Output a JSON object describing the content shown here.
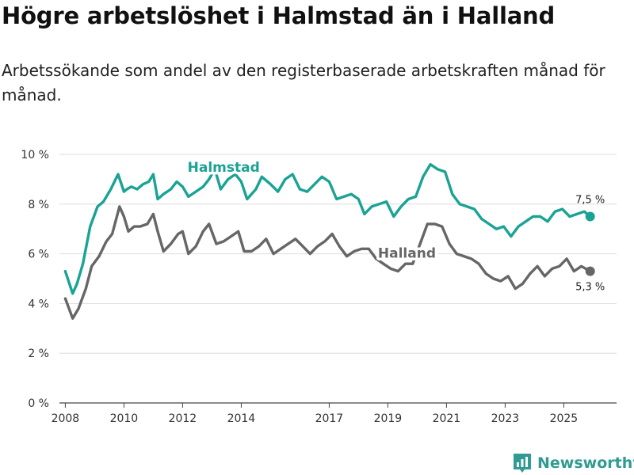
{
  "title": "Högre arbetslöshet i Halmstad än i Halland",
  "subtitle": "Arbetssökande som andel av den registerbaserade arbetskraften månad för månad.",
  "brand": {
    "name": "Newsworthy",
    "icon": "newsworthy-logo-icon"
  },
  "colors": {
    "halmstad": "#1aa394",
    "halland": "#666666",
    "grid": "#dddddd",
    "brand": "#2f9b92"
  },
  "chart_data": {
    "type": "line",
    "title": "Högre arbetslöshet i Halmstad än i Halland",
    "xlabel": "",
    "ylabel": "",
    "xlim": [
      2007.8,
      2026.8
    ],
    "ylim": [
      0,
      10
    ],
    "y_ticks": [
      0,
      2,
      4,
      6,
      8,
      10
    ],
    "y_tick_labels": [
      "0 %",
      "2 %",
      "4 %",
      "6 %",
      "8 %",
      "10 %"
    ],
    "x_ticks": [
      2008,
      2010,
      2012,
      2014,
      2017,
      2019,
      2021,
      2023,
      2025
    ],
    "x_tick_labels": [
      "2008",
      "2010",
      "2012",
      "2014",
      "2017",
      "2019",
      "2021",
      "2023",
      "2025"
    ],
    "grid": true,
    "series": [
      {
        "name": "Halmstad",
        "label": "Halmstad",
        "end_label": "7,5 %",
        "x": [
          2008.0,
          2008.25,
          2008.4,
          2008.6,
          2008.85,
          2009.1,
          2009.3,
          2009.55,
          2009.8,
          2010.0,
          2010.1,
          2010.25,
          2010.45,
          2010.65,
          2010.85,
          2011.0,
          2011.15,
          2011.35,
          2011.6,
          2011.8,
          2012.0,
          2012.2,
          2012.45,
          2012.7,
          2012.9,
          2013.1,
          2013.3,
          2013.55,
          2013.8,
          2014.0,
          2014.2,
          2014.5,
          2014.7,
          2015.0,
          2015.25,
          2015.5,
          2015.75,
          2016.0,
          2016.25,
          2016.5,
          2016.75,
          2017.0,
          2017.25,
          2017.5,
          2017.75,
          2018.0,
          2018.2,
          2018.45,
          2018.7,
          2018.95,
          2019.2,
          2019.45,
          2019.7,
          2019.95,
          2020.2,
          2020.45,
          2020.7,
          2020.95,
          2021.2,
          2021.45,
          2021.7,
          2021.95,
          2022.2,
          2022.45,
          2022.7,
          2022.95,
          2023.2,
          2023.45,
          2023.7,
          2023.95,
          2024.2,
          2024.45,
          2024.7,
          2024.95,
          2025.2,
          2025.45,
          2025.7,
          2025.9
        ],
        "values": [
          5.3,
          4.4,
          4.8,
          5.6,
          7.1,
          7.9,
          8.1,
          8.6,
          9.2,
          8.5,
          8.6,
          8.7,
          8.6,
          8.8,
          8.9,
          9.2,
          8.2,
          8.4,
          8.6,
          8.9,
          8.7,
          8.3,
          8.5,
          8.7,
          9.0,
          9.4,
          8.6,
          9.0,
          9.2,
          8.9,
          8.2,
          8.6,
          9.1,
          8.8,
          8.5,
          9.0,
          9.2,
          8.6,
          8.5,
          8.8,
          9.1,
          8.9,
          8.2,
          8.3,
          8.4,
          8.2,
          7.6,
          7.9,
          8.0,
          8.1,
          7.5,
          7.9,
          8.2,
          8.3,
          9.1,
          9.6,
          9.4,
          9.3,
          8.4,
          8.0,
          7.9,
          7.8,
          7.4,
          7.2,
          7.0,
          7.1,
          6.7,
          7.1,
          7.3,
          7.5,
          7.5,
          7.3,
          7.7,
          7.8,
          7.5,
          7.6,
          7.7,
          7.5
        ]
      },
      {
        "name": "Halland",
        "label": "Halland",
        "end_label": "5,3 %",
        "x": [
          2008.0,
          2008.25,
          2008.45,
          2008.7,
          2008.9,
          2009.15,
          2009.4,
          2009.6,
          2009.85,
          2010.0,
          2010.15,
          2010.35,
          2010.55,
          2010.8,
          2011.0,
          2011.15,
          2011.35,
          2011.6,
          2011.85,
          2012.0,
          2012.2,
          2012.45,
          2012.7,
          2012.9,
          2013.15,
          2013.4,
          2013.65,
          2013.9,
          2014.1,
          2014.35,
          2014.6,
          2014.85,
          2015.1,
          2015.35,
          2015.6,
          2015.85,
          2016.1,
          2016.35,
          2016.6,
          2016.85,
          2017.1,
          2017.35,
          2017.6,
          2017.85,
          2018.1,
          2018.35,
          2018.6,
          2018.85,
          2019.1,
          2019.35,
          2019.6,
          2019.85,
          2020.1,
          2020.35,
          2020.6,
          2020.85,
          2021.1,
          2021.35,
          2021.6,
          2021.85,
          2022.1,
          2022.35,
          2022.6,
          2022.85,
          2023.1,
          2023.35,
          2023.6,
          2023.85,
          2024.1,
          2024.35,
          2024.6,
          2024.85,
          2025.1,
          2025.35,
          2025.6,
          2025.9
        ],
        "values": [
          4.2,
          3.4,
          3.8,
          4.6,
          5.5,
          5.9,
          6.5,
          6.8,
          7.9,
          7.5,
          6.9,
          7.1,
          7.1,
          7.2,
          7.6,
          6.9,
          6.1,
          6.4,
          6.8,
          6.9,
          6.0,
          6.3,
          6.9,
          7.2,
          6.4,
          6.5,
          6.7,
          6.9,
          6.1,
          6.1,
          6.3,
          6.6,
          6.0,
          6.2,
          6.4,
          6.6,
          6.3,
          6.0,
          6.3,
          6.5,
          6.8,
          6.3,
          5.9,
          6.1,
          6.2,
          6.2,
          5.8,
          5.6,
          5.4,
          5.3,
          5.6,
          5.6,
          6.4,
          7.2,
          7.2,
          7.1,
          6.4,
          6.0,
          5.9,
          5.8,
          5.6,
          5.2,
          5.0,
          4.9,
          5.1,
          4.6,
          4.8,
          5.2,
          5.5,
          5.1,
          5.4,
          5.5,
          5.8,
          5.3,
          5.5,
          5.3
        ]
      }
    ]
  }
}
